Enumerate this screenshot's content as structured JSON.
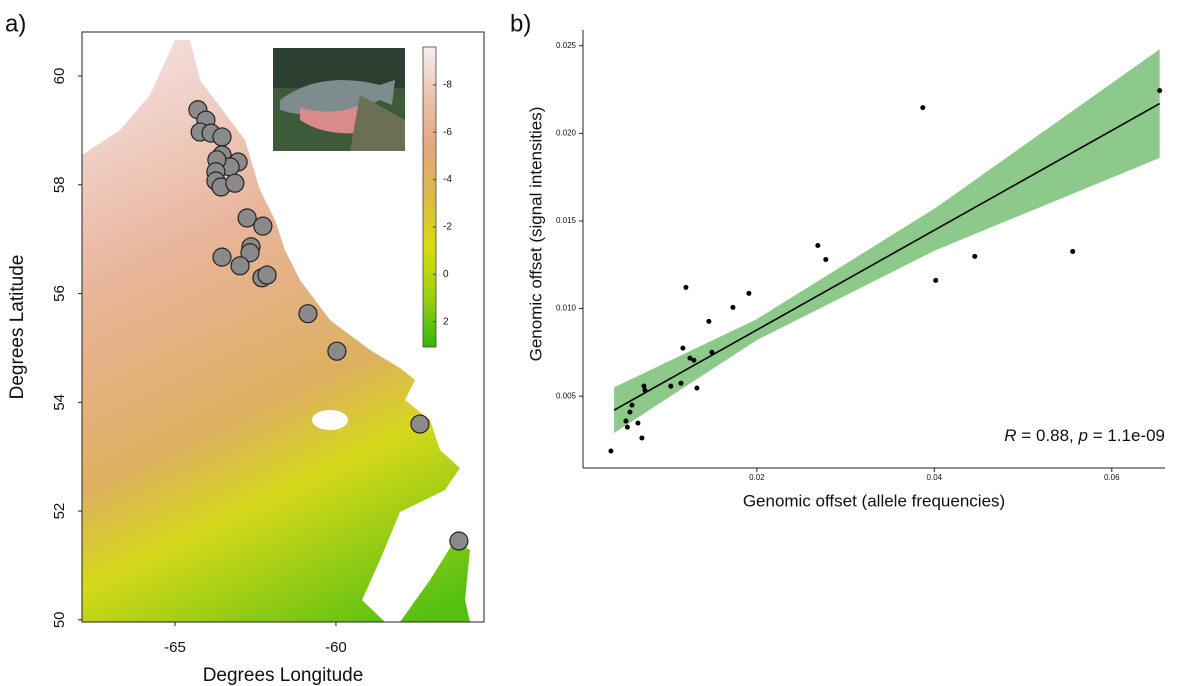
{
  "chart_data": [
    {
      "type": "map",
      "panel_label": "a)",
      "xlabel": "Degrees Longitude",
      "ylabel": "Degrees Latitude",
      "xlim": [
        -67.89,
        -55.4
      ],
      "ylim": [
        49.96,
        60.81
      ],
      "xticks": [
        -65,
        -60
      ],
      "yticks": [
        50,
        52,
        54,
        56,
        58,
        60
      ],
      "x": [
        -64.29,
        -64.04,
        -64.22,
        -63.88,
        -63.54,
        -63.54,
        -63.04,
        -63.29,
        -63.7,
        -63.73,
        -63.73,
        -63.57,
        -63.14,
        -62.76,
        -62.27,
        -62.64,
        -62.67,
        -63.54,
        -62.98,
        -62.3,
        -62.14,
        -60.87,
        -59.97,
        -57.39,
        -56.18
      ],
      "values": [
        59.38,
        59.19,
        58.97,
        58.95,
        58.88,
        58.55,
        58.42,
        58.33,
        58.46,
        58.24,
        58.07,
        57.96,
        58.03,
        57.39,
        57.24,
        56.86,
        56.75,
        56.67,
        56.51,
        56.29,
        56.34,
        55.63,
        54.94,
        53.6,
        51.45
      ],
      "color": "#8a8a8a",
      "colorbar": {
        "lim": [
          -9.6,
          3.07
        ],
        "ticks": [
          -8,
          -6,
          -4,
          -2,
          0,
          2
        ],
        "colors": [
          "#f7eef0",
          "#ecc2ad",
          "#e3a77c",
          "#dcba45",
          "#d8dc10",
          "#9ccf10",
          "#2fb80a"
        ]
      }
    },
    {
      "type": "scatter",
      "panel_label": "b)",
      "xlabel": "Genomic offset (allele frequencies)",
      "ylabel": "Genomic offset (signal intensities)",
      "xlim": [
        0.0004,
        0.066
      ],
      "ylim": [
        0.0009,
        0.0259
      ],
      "xticks": [
        0.02,
        0.04,
        0.06
      ],
      "yticks": [
        0.005,
        {
          "value": 0.01,
          "label": "0.010"
        },
        0.015,
        {
          "value": 0.02,
          "label": "0.020"
        },
        0.025
      ],
      "x": [
        0.00355,
        0.00524,
        0.0054,
        0.00569,
        0.00592,
        0.00659,
        0.00704,
        0.00727,
        0.00738,
        0.0103,
        0.01144,
        0.01166,
        0.012,
        0.01245,
        0.0129,
        0.01324,
        0.01459,
        0.01493,
        0.0173,
        0.0191,
        0.02687,
        0.02777,
        0.0387,
        0.04016,
        0.04456,
        0.0556,
        0.0654
      ],
      "values": [
        0.00187,
        0.00358,
        0.00323,
        0.00409,
        0.00449,
        0.00346,
        0.00261,
        0.00557,
        0.00534,
        0.00557,
        0.00574,
        0.00774,
        0.01121,
        0.00717,
        0.00705,
        0.00546,
        0.00927,
        0.00751,
        0.01007,
        0.01087,
        0.0136,
        0.0128,
        0.02147,
        0.01161,
        0.01298,
        0.01326,
        0.02244
      ],
      "color": "#000000",
      "fit": {
        "x": [
          0.0039,
          0.0654
        ],
        "values": [
          0.0042,
          0.0217
        ],
        "color": "#000000"
      },
      "band": {
        "x": [
          0.0039,
          0.02,
          0.04,
          0.0654
        ],
        "lower": [
          0.0029,
          0.0082,
          0.0133,
          0.0186
        ],
        "upper": [
          0.0055,
          0.0094,
          0.0157,
          0.0248
        ],
        "color": "#8cc98a"
      },
      "annotation": [
        "R",
        " = 0.88, ",
        "p",
        " = 1.1e-09"
      ],
      "annotation_italic": [
        true,
        false,
        true,
        false
      ]
    }
  ]
}
